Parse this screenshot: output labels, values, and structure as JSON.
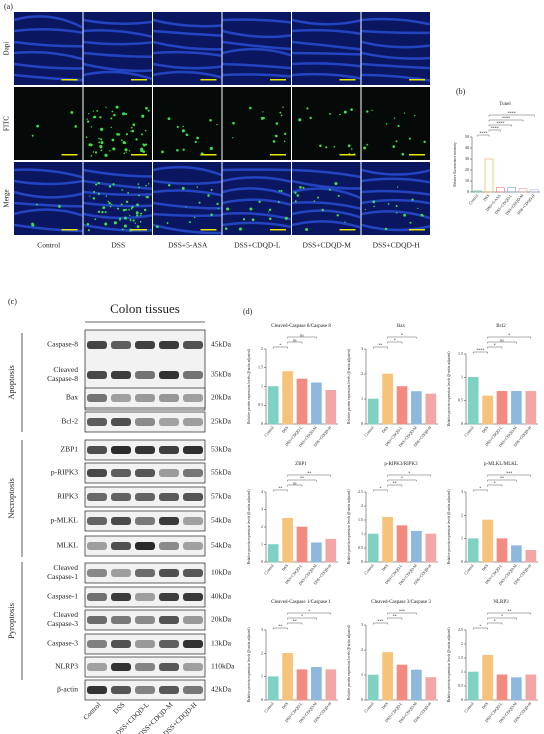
{
  "panel_a": {
    "label": "(a)",
    "rows": [
      "Dapi",
      "FITC",
      "Merge"
    ],
    "columns": [
      "Control",
      "DSS",
      "DSS+5-ASA",
      "DSS+CDQD-L",
      "DSS+CDQD-M",
      "DSS+CDQD-H"
    ]
  },
  "panel_b": {
    "label": "(b)"
  },
  "panel_c": {
    "label": "(c)",
    "title": "Colon tissues",
    "blots": [
      {
        "name": [
          "Caspase-8"
        ],
        "size": "45kDa"
      },
      {
        "name": [
          "Cleaved",
          "Caspase-8"
        ],
        "size": "35kDa"
      },
      {
        "name": [
          "Bax"
        ],
        "size": "20kDa"
      },
      {
        "name": [
          "Bcl-2"
        ],
        "size": "25kDa"
      },
      {
        "name": [
          "ZBP1"
        ],
        "size": "53kDa"
      },
      {
        "name": [
          "p-RIPK3"
        ],
        "size": "55kDa"
      },
      {
        "name": [
          "RIPK3"
        ],
        "size": "57kDa"
      },
      {
        "name": [
          "p-MLKL"
        ],
        "size": "54kDa"
      },
      {
        "name": [
          "MLKL"
        ],
        "size": "54kDa"
      },
      {
        "name": [
          "Cleaved",
          "Caspase-1"
        ],
        "size": "10kDa"
      },
      {
        "name": [
          "Caspase-1"
        ],
        "size": "40kDa"
      },
      {
        "name": [
          "Cleaved",
          "Caspase-3"
        ],
        "size": "20kDa"
      },
      {
        "name": [
          "Caspase-3"
        ],
        "size": "13kDa"
      },
      {
        "name": [
          "NLRP3"
        ],
        "size": "110kDa"
      },
      {
        "name": [
          "β-actin"
        ],
        "size": "42kDa"
      }
    ],
    "groups": [
      "Apoptosis",
      "Necroptosis",
      "Pyroptosis"
    ],
    "lanes": [
      "Control",
      "DSS",
      "DSS+CDQD-L",
      "DSS+CDQD-M",
      "DSS+CDQD-H"
    ]
  },
  "panel_d": {
    "label": "(d)"
  },
  "chart_data": [
    {
      "type": "bar",
      "title": "Tunel",
      "ylabel": "Relative fluorescence intensity",
      "categories": [
        "Control",
        "DSS",
        "DSS+5-ASA",
        "DSS+CDQD-L",
        "DSS+CDQD-M",
        "DSS+CDQD-H"
      ],
      "values": [
        1,
        30,
        4,
        4,
        3,
        2
      ],
      "colors": [
        "#5bb8a8",
        "#f0a44a",
        "#e8706a",
        "#6f9fd0",
        "#e89a9a",
        "#9ab8e0"
      ],
      "ylim": [
        0,
        50
      ],
      "yticks": [
        0,
        10,
        20,
        30,
        40,
        50
      ],
      "significance": [
        "****",
        "****",
        "****",
        "****",
        "****"
      ]
    },
    {
      "type": "bar",
      "title": "Cleaved-Caspase 8/Caspase 8",
      "ylabel": "Relative protein expression levels (β-actin adjusted)",
      "categories": [
        "Control",
        "DSS",
        "DSS+CDQD-L",
        "DSS+CDQD-M",
        "DSS+CDQD-H"
      ],
      "values": [
        1,
        1.4,
        1.2,
        1.1,
        0.9
      ],
      "colors": [
        "#7fd1c1",
        "#f7c27a",
        "#f28b82",
        "#8fb8de",
        "#f4a6a6"
      ],
      "ylim": [
        0,
        2
      ],
      "yticks": [
        0,
        0.5,
        1,
        1.5,
        2
      ],
      "significance": [
        "*",
        "ns",
        "ns"
      ]
    },
    {
      "type": "bar",
      "title": "Bax",
      "ylabel": "Relative protein expression levels (β-actin adjusted)",
      "categories": [
        "Control",
        "DSS",
        "DSS+CDQD-L",
        "DSS+CDQD-M",
        "DSS+CDQD-H"
      ],
      "values": [
        1,
        2,
        1.5,
        1.3,
        1.2
      ],
      "colors": [
        "#7fd1c1",
        "#f7c27a",
        "#f28b82",
        "#8fb8de",
        "#f4a6a6"
      ],
      "ylim": [
        0,
        3
      ],
      "yticks": [
        0,
        1,
        2,
        3
      ],
      "significance": [
        "**",
        "*",
        "*"
      ]
    },
    {
      "type": "bar",
      "title": "Bcl2",
      "ylabel": "Relative protein expression levels (β-actin adjusted)",
      "categories": [
        "Control",
        "DSS",
        "DSS+CDQD-L",
        "DSS+CDQD-M",
        "DSS+CDQD-H"
      ],
      "values": [
        1,
        0.6,
        0.7,
        0.7,
        0.7
      ],
      "colors": [
        "#7fd1c1",
        "#f7c27a",
        "#f28b82",
        "#8fb8de",
        "#f4a6a6"
      ],
      "ylim": [
        0,
        1.5
      ],
      "yticks": [
        0,
        0.5,
        1,
        1.5
      ],
      "significance": [
        "****",
        "*",
        "ns",
        "*"
      ]
    },
    {
      "type": "bar",
      "title": "ZBP1",
      "ylabel": "Relative protein expression levels (β-actin adjusted)",
      "categories": [
        "Control",
        "DSS",
        "DSS+CDQD-L",
        "DSS+CDQD-M",
        "DSS+CDQD-H"
      ],
      "values": [
        1,
        2.5,
        2,
        1.1,
        1.3
      ],
      "colors": [
        "#7fd1c1",
        "#f7c27a",
        "#f28b82",
        "#8fb8de",
        "#f4a6a6"
      ],
      "ylim": [
        0,
        4
      ],
      "yticks": [
        0,
        1,
        2,
        3,
        4
      ],
      "significance": [
        "**",
        "ns",
        "**",
        "**"
      ]
    },
    {
      "type": "bar",
      "title": "p-RIPK3/RIPK3",
      "ylabel": "Relative protein expression levels (β-actin adjusted)",
      "categories": [
        "Control",
        "DSS",
        "DSS+CDQD-L",
        "DSS+CDQD-M",
        "DSS+CDQD-H"
      ],
      "values": [
        1,
        1.6,
        1.3,
        1.1,
        1
      ],
      "colors": [
        "#7fd1c1",
        "#f7c27a",
        "#f28b82",
        "#8fb8de",
        "#f4a6a6"
      ],
      "ylim": [
        0,
        2.5
      ],
      "yticks": [
        0,
        0.5,
        1,
        1.5,
        2,
        2.5
      ],
      "significance": [
        "*",
        "**",
        "*",
        "*"
      ]
    },
    {
      "type": "bar",
      "title": "p-MLKL/MLKL",
      "ylabel": "Relative protein expression levels (β-actin adjusted)",
      "categories": [
        "Control",
        "DSS",
        "DSS+CDQD-L",
        "DSS+CDQD-M",
        "DSS+CDQD-H"
      ],
      "values": [
        1,
        1.8,
        1,
        0.7,
        0.5
      ],
      "colors": [
        "#7fd1c1",
        "#f7c27a",
        "#f28b82",
        "#8fb8de",
        "#f4a6a6"
      ],
      "ylim": [
        0,
        3
      ],
      "yticks": [
        0,
        1,
        2,
        3
      ],
      "significance": [
        "*",
        "*",
        "**",
        "***"
      ]
    },
    {
      "type": "bar",
      "title": "Cleaved-Caspase 1/Caspase 1",
      "ylabel": "Relative protein expression levels (β-actin adjusted)",
      "categories": [
        "Control",
        "DSS",
        "DSS+CDQD-L",
        "DSS+CDQD-M",
        "DSS+CDQD-H"
      ],
      "values": [
        1,
        2,
        1.3,
        1.4,
        1.3
      ],
      "colors": [
        "#7fd1c1",
        "#f7c27a",
        "#f28b82",
        "#8fb8de",
        "#f4a6a6"
      ],
      "ylim": [
        0,
        3
      ],
      "yticks": [
        0,
        1,
        2,
        3
      ],
      "significance": [
        "**",
        "**",
        "*",
        "*"
      ]
    },
    {
      "type": "bar",
      "title": "Cleaved-Caspase 3/Caspase 3",
      "ylabel": "Relative protein expression levels (β-actin adjusted)",
      "categories": [
        "Control",
        "DSS",
        "DSS+CDQD-L",
        "DSS+CDQD-M",
        "DSS+CDQD-H"
      ],
      "values": [
        1,
        1.9,
        1.4,
        1.2,
        0.9
      ],
      "colors": [
        "#7fd1c1",
        "#f7c27a",
        "#f28b82",
        "#8fb8de",
        "#f4a6a6"
      ],
      "ylim": [
        0,
        3
      ],
      "yticks": [
        0,
        1,
        2,
        3
      ],
      "significance": [
        "***",
        "**",
        "***"
      ]
    },
    {
      "type": "bar",
      "title": "NLRP3",
      "ylabel": "Relative protein expression levels (β-actin adjusted)",
      "categories": [
        "Control",
        "DSS",
        "DSS+CDQD-L",
        "DSS+CDQD-M",
        "DSS+CDQD-H"
      ],
      "values": [
        1,
        1.6,
        0.9,
        0.8,
        0.9
      ],
      "colors": [
        "#7fd1c1",
        "#f7c27a",
        "#f28b82",
        "#8fb8de",
        "#f4a6a6"
      ],
      "ylim": [
        0,
        2.5
      ],
      "yticks": [
        0,
        0.5,
        1,
        1.5,
        2,
        2.5
      ],
      "significance": [
        "*",
        "*",
        "*",
        "**"
      ]
    }
  ]
}
